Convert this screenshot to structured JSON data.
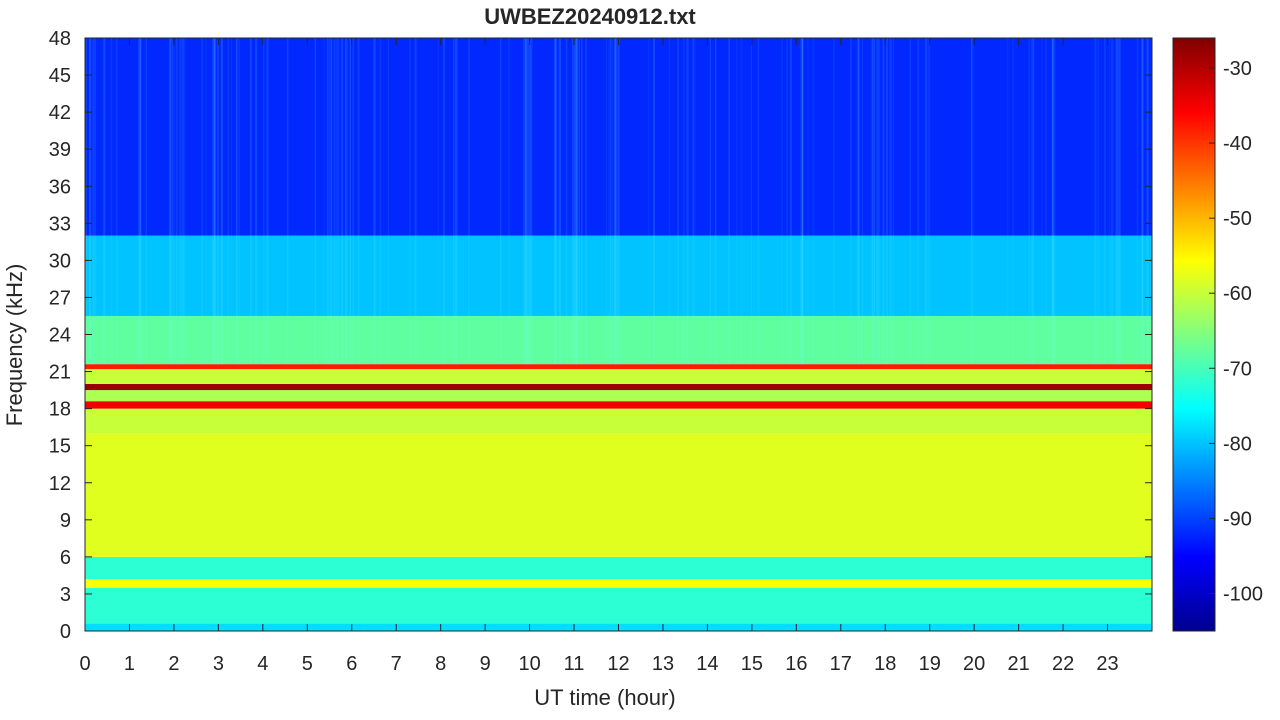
{
  "chart_data": {
    "type": "heatmap",
    "title": "UWBEZ20240912.txt",
    "xlabel": "UT time (hour)",
    "ylabel": "Frequency (kHz)",
    "xlim": [
      0,
      24
    ],
    "ylim": [
      0,
      48
    ],
    "x_ticks": [
      "0",
      "1",
      "2",
      "3",
      "4",
      "5",
      "6",
      "7",
      "8",
      "9",
      "10",
      "11",
      "12",
      "13",
      "14",
      "15",
      "16",
      "17",
      "18",
      "19",
      "20",
      "21",
      "22",
      "23"
    ],
    "y_ticks": [
      "0",
      "3",
      "6",
      "9",
      "12",
      "15",
      "18",
      "21",
      "24",
      "27",
      "30",
      "33",
      "36",
      "39",
      "42",
      "45",
      "48"
    ],
    "colorbar": {
      "min": -105,
      "max": -26,
      "ticks": [
        "-100",
        "-90",
        "-80",
        "-70",
        "-60",
        "-50",
        "-40",
        "-30"
      ],
      "colormap": "jet"
    },
    "bands_db": [
      {
        "f_lo": 0,
        "f_hi": 0.6,
        "db": -78
      },
      {
        "f_lo": 0.6,
        "f_hi": 3.5,
        "db": -72
      },
      {
        "f_lo": 3.5,
        "f_hi": 4.2,
        "db": -56
      },
      {
        "f_lo": 4.2,
        "f_hi": 6,
        "db": -72
      },
      {
        "f_lo": 6,
        "f_hi": 16,
        "db": -58
      },
      {
        "f_lo": 16,
        "f_hi": 18,
        "db": -60
      },
      {
        "f_lo": 18,
        "f_hi": 18.6,
        "db": -35
      },
      {
        "f_lo": 18.6,
        "f_hi": 19.5,
        "db": -62
      },
      {
        "f_lo": 19.5,
        "f_hi": 20.0,
        "db": -28
      },
      {
        "f_lo": 20.0,
        "f_hi": 21.2,
        "db": -60
      },
      {
        "f_lo": 21.2,
        "f_hi": 21.6,
        "db": -38
      },
      {
        "f_lo": 21.6,
        "f_hi": 25.5,
        "db": -68
      },
      {
        "f_lo": 25.5,
        "f_hi": 32,
        "db": -80
      },
      {
        "f_lo": 32,
        "f_hi": 48,
        "db": -92
      }
    ]
  }
}
